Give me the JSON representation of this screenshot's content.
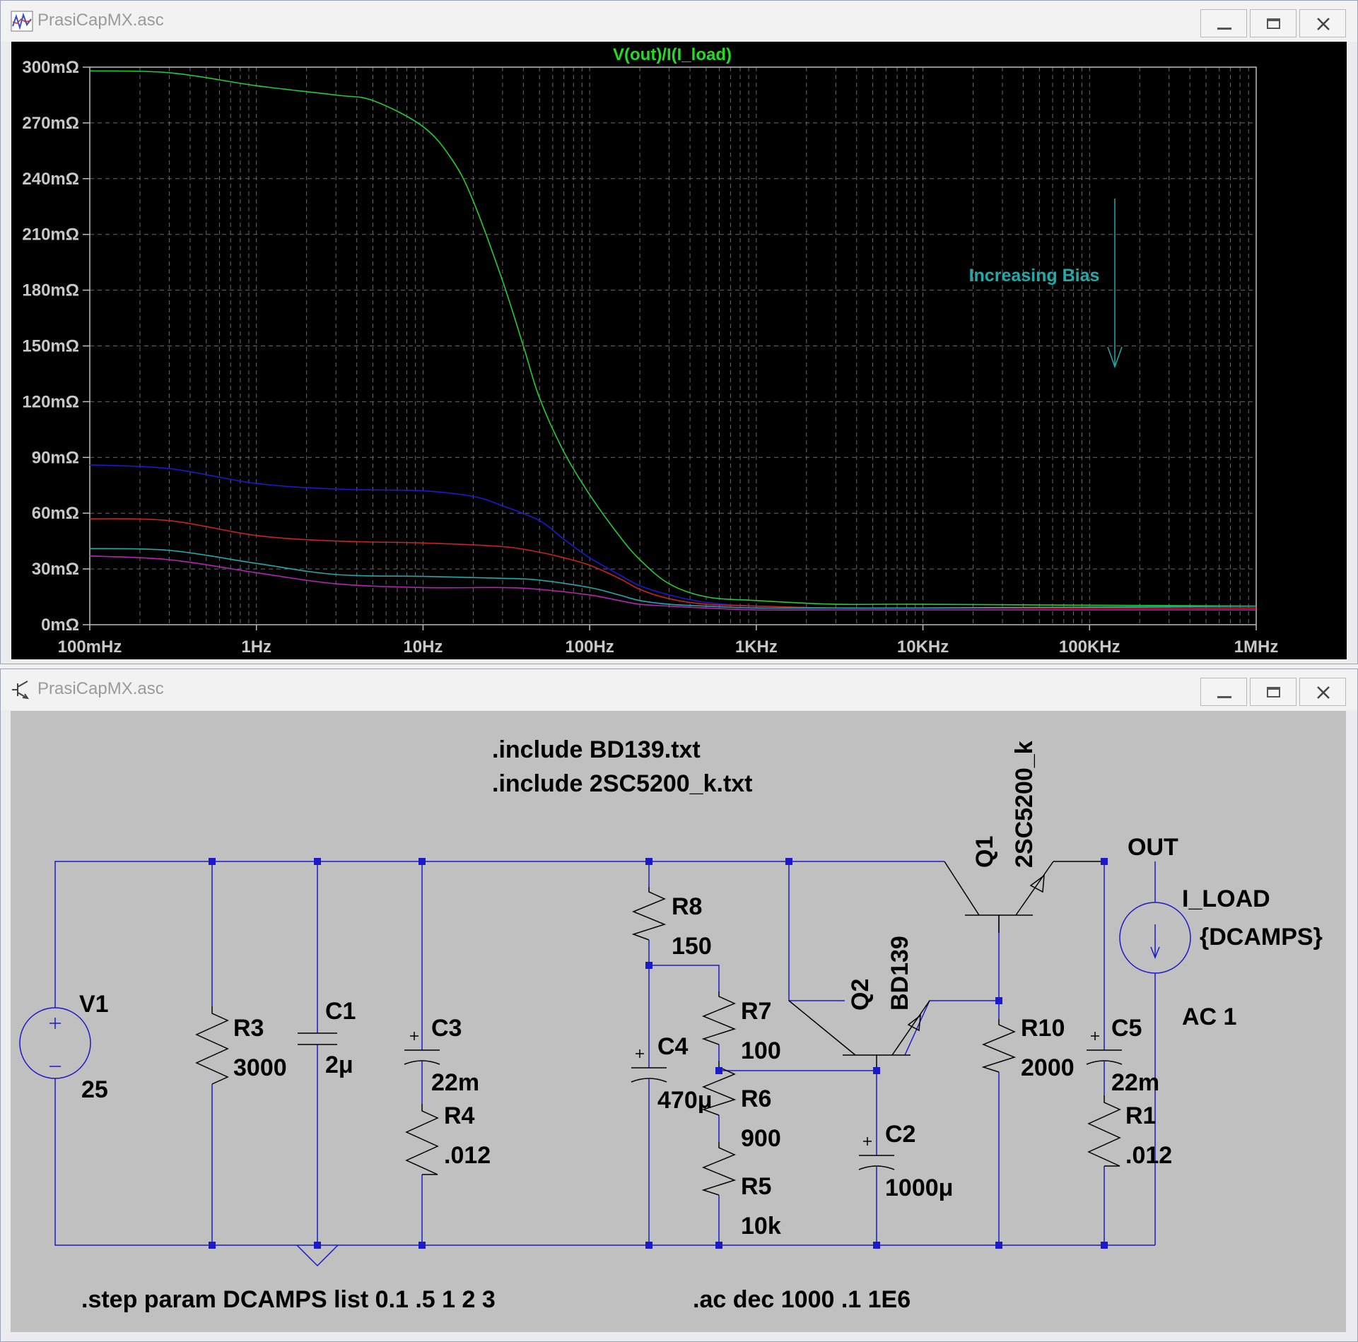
{
  "plot_window": {
    "title": "PrasiCapMX.asc",
    "icon": "waveform-icon"
  },
  "schematic_window": {
    "title": "PrasiCapMX.asc",
    "icon": "transistor-icon"
  },
  "chart_data": {
    "type": "line",
    "title": "V(out)/I(I_load)",
    "x_scale": "log",
    "xlim": [
      0.1,
      1000000
    ],
    "ylim": [
      0,
      300
    ],
    "x_tick_values": [
      0.1,
      1,
      10,
      100,
      1000,
      10000,
      100000,
      1000000
    ],
    "x_ticks": [
      "100mHz",
      "1Hz",
      "10Hz",
      "100Hz",
      "1KHz",
      "10KHz",
      "100KHz",
      "1MHz"
    ],
    "y_tick_values": [
      0,
      30,
      60,
      90,
      120,
      150,
      180,
      210,
      240,
      270,
      300
    ],
    "y_ticks": [
      "0mΩ",
      "30mΩ",
      "60mΩ",
      "90mΩ",
      "120mΩ",
      "150mΩ",
      "180mΩ",
      "210mΩ",
      "240mΩ",
      "270mΩ",
      "300mΩ"
    ],
    "grid": true,
    "annotation": "Increasing Bias",
    "series": [
      {
        "color": "#22cc33",
        "x": [
          0.1,
          0.3,
          1,
          3,
          5,
          10,
          15,
          20,
          30,
          40,
          50,
          70,
          100,
          150,
          200,
          300,
          500,
          1000,
          3000,
          10000,
          1000000
        ],
        "y": [
          298,
          297,
          290,
          285,
          282,
          268,
          250,
          228,
          185,
          150,
          122,
          93,
          70,
          48,
          35,
          22,
          15,
          13,
          11,
          11,
          10
        ]
      },
      {
        "color": "#1a1ad0",
        "x": [
          0.1,
          0.3,
          1,
          3,
          10,
          20,
          30,
          50,
          70,
          100,
          150,
          200,
          300,
          500,
          1000,
          3000,
          10000,
          1000000
        ],
        "y": [
          86,
          84,
          76,
          73,
          72,
          69,
          64,
          56,
          46,
          36,
          27,
          21,
          16,
          12,
          10,
          9,
          9,
          9
        ]
      },
      {
        "color": "#cc2222",
        "x": [
          0.1,
          0.3,
          1,
          3,
          10,
          30,
          50,
          70,
          100,
          150,
          200,
          300,
          500,
          1000,
          3000,
          10000,
          1000000
        ],
        "y": [
          57,
          56,
          48,
          45,
          44,
          42,
          39,
          36,
          32,
          25,
          19,
          14,
          11,
          10,
          9,
          9,
          9
        ]
      },
      {
        "color": "#22aaaa",
        "x": [
          0.1,
          0.3,
          1,
          3,
          10,
          30,
          50,
          100,
          150,
          200,
          300,
          500,
          1000,
          3000,
          10000,
          1000000
        ],
        "y": [
          41,
          40,
          33,
          27,
          26,
          25,
          24,
          20,
          16,
          13,
          11,
          10,
          9,
          9,
          9,
          10
        ]
      },
      {
        "color": "#bb22bb",
        "x": [
          0.1,
          0.3,
          1,
          3,
          10,
          30,
          50,
          100,
          150,
          200,
          300,
          500,
          1000,
          3000,
          10000,
          1000000
        ],
        "y": [
          37,
          35,
          28,
          22,
          20,
          20,
          19,
          16,
          13,
          11,
          10,
          9,
          8,
          8,
          8,
          8
        ]
      }
    ]
  },
  "schematic": {
    "directives": {
      "include1": ".include BD139.txt",
      "include2": ".include 2SC5200_k.txt",
      "step": ".step param DCAMPS list 0.1 .5 1 2 3",
      "ac": ".ac dec 1000 .1 1E6"
    },
    "V1": {
      "name": "V1",
      "value": "25"
    },
    "R3": {
      "name": "R3",
      "value": "3000"
    },
    "C1": {
      "name": "C1",
      "value": "2μ"
    },
    "C3": {
      "name": "C3",
      "value": "22m"
    },
    "R4": {
      "name": "R4",
      "value": ".012"
    },
    "R8": {
      "name": "R8",
      "value": "150"
    },
    "C4": {
      "name": "C4",
      "value": "470μ"
    },
    "R7": {
      "name": "R7",
      "value": "100"
    },
    "R6": {
      "name": "R6",
      "value": "900"
    },
    "R5": {
      "name": "R5",
      "value": "10k"
    },
    "Q2": {
      "name": "Q2",
      "value": "BD139"
    },
    "C2": {
      "name": "C2",
      "value": "1000μ"
    },
    "Q1": {
      "name": "Q1",
      "value": "2SC5200_k"
    },
    "R10": {
      "name": "R10",
      "value": "2000"
    },
    "C5": {
      "name": "C5",
      "value": "22m"
    },
    "R1": {
      "name": "R1",
      "value": ".012"
    },
    "I_LOAD": {
      "name": "I_LOAD",
      "value": "{DCAMPS}",
      "ac": "AC 1"
    },
    "out_label": "OUT"
  }
}
